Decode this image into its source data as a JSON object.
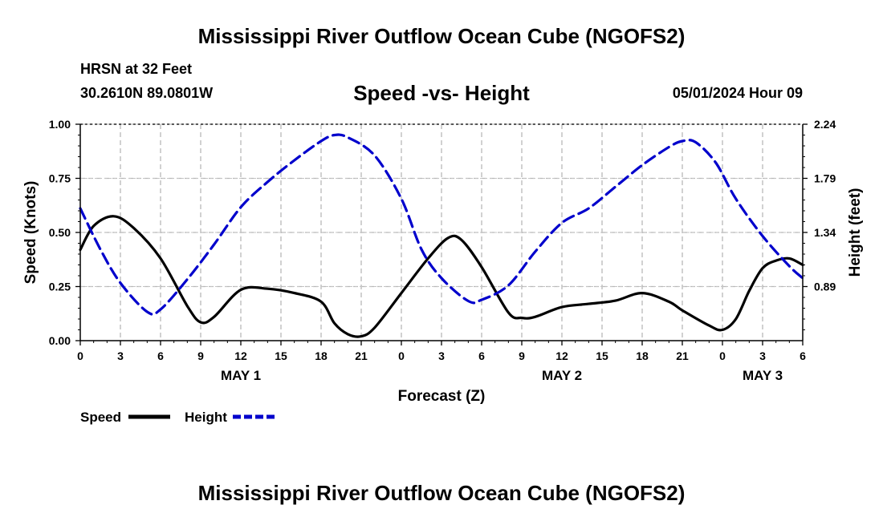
{
  "header": {
    "title": "Mississippi River Outflow Ocean Cube (NGOFS2)",
    "station": "HRSN at 32 Feet",
    "coords": "30.2610N  89.0801W",
    "subtitle": "Speed -vs- Height",
    "datetime": "05/01/2024 Hour 09"
  },
  "footer": {
    "title": "Mississippi River Outflow Ocean Cube (NGOFS2)"
  },
  "chart_data": {
    "type": "line",
    "title": "Speed -vs- Height",
    "xlabel": "Forecast (Z)",
    "ylabel": "Speed (Knots)",
    "y2label": "Height (feet)",
    "xlim": [
      0,
      54
    ],
    "ylim": [
      0,
      1.0
    ],
    "y2lim": [
      0.44,
      2.24
    ],
    "grid": true,
    "x_ticks": [
      0,
      3,
      6,
      9,
      12,
      15,
      18,
      21,
      24,
      27,
      30,
      33,
      36,
      39,
      42,
      45,
      48,
      51,
      54
    ],
    "x_tick_labels": [
      "0",
      "3",
      "6",
      "9",
      "12",
      "15",
      "18",
      "21",
      "0",
      "3",
      "6",
      "9",
      "12",
      "15",
      "18",
      "21",
      "0",
      "3",
      "6"
    ],
    "date_labels": [
      {
        "x": 12,
        "label": "MAY 1"
      },
      {
        "x": 36,
        "label": "MAY 2"
      },
      {
        "x": 51,
        "label": "MAY 3"
      }
    ],
    "y_ticks": [
      0.0,
      0.25,
      0.5,
      0.75,
      1.0
    ],
    "y_tick_labels": [
      "0.00",
      "0.25",
      "0.50",
      "0.75",
      "1.00"
    ],
    "y2_ticks": [
      0.89,
      1.34,
      1.79,
      2.24
    ],
    "y2_tick_labels": [
      "0.89",
      "1.34",
      "1.79",
      "2.24"
    ],
    "series": [
      {
        "name": "Speed",
        "axis": "left",
        "color": "#000000",
        "dash": "solid",
        "x": [
          0,
          1,
          2.5,
          4,
          6,
          8,
          9,
          10,
          12,
          14,
          16,
          18,
          19,
          20,
          21,
          22,
          24,
          26,
          27.5,
          28.5,
          30,
          32,
          33,
          34,
          36,
          38,
          40,
          42,
          44,
          45,
          47,
          48,
          49,
          50,
          51,
          52,
          53,
          54
        ],
        "values": [
          0.42,
          0.53,
          0.575,
          0.52,
          0.38,
          0.16,
          0.085,
          0.11,
          0.235,
          0.24,
          0.22,
          0.18,
          0.08,
          0.03,
          0.02,
          0.06,
          0.22,
          0.38,
          0.475,
          0.465,
          0.34,
          0.13,
          0.105,
          0.11,
          0.155,
          0.17,
          0.185,
          0.22,
          0.18,
          0.14,
          0.07,
          0.05,
          0.1,
          0.23,
          0.335,
          0.37,
          0.38,
          0.35
        ]
      },
      {
        "name": "Height",
        "axis": "right",
        "color": "#0000cc",
        "dash": "dashed",
        "x": [
          0,
          1.5,
          3,
          5,
          6,
          8,
          10,
          12,
          14,
          16,
          18,
          19,
          20,
          22,
          24,
          25.5,
          27,
          29,
          30,
          32,
          34,
          36,
          38,
          40,
          42,
          44,
          45,
          46,
          47.5,
          49,
          51,
          53,
          54
        ],
        "values": [
          1.54,
          1.2,
          0.92,
          0.68,
          0.7,
          0.95,
          1.24,
          1.55,
          1.76,
          1.94,
          2.1,
          2.15,
          2.13,
          1.98,
          1.62,
          1.2,
          0.96,
          0.77,
          0.78,
          0.9,
          1.18,
          1.42,
          1.54,
          1.72,
          1.9,
          2.05,
          2.1,
          2.09,
          1.92,
          1.62,
          1.31,
          1.06,
          0.96
        ]
      }
    ]
  }
}
